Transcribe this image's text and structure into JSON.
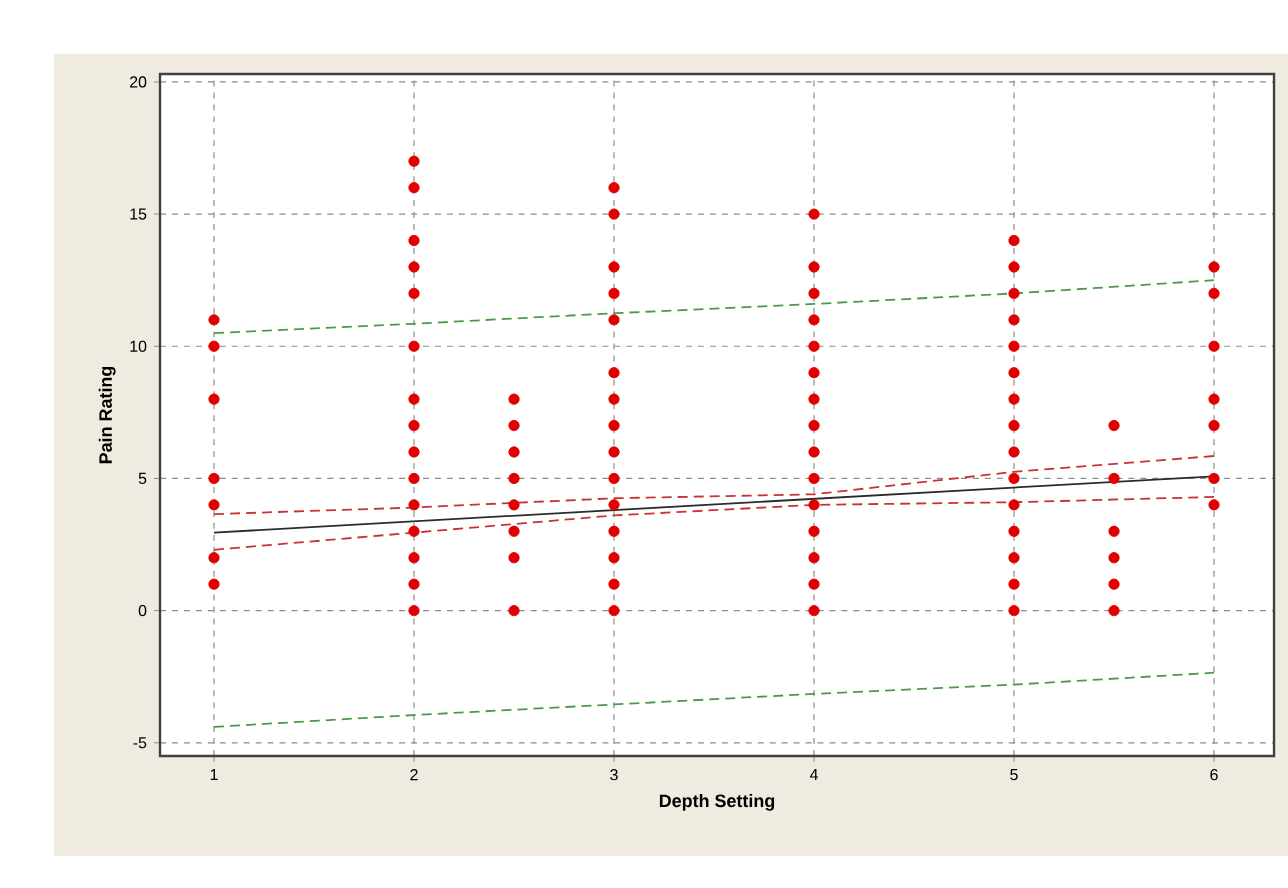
{
  "chart_data": {
    "type": "scatter",
    "xlabel": "Depth Setting",
    "ylabel": "Pain Rating",
    "xlim": [
      0.73,
      6.3
    ],
    "ylim": [
      -5.5,
      20.3
    ],
    "xticks": [
      1,
      2,
      3,
      4,
      5,
      6
    ],
    "yticks": [
      -5,
      0,
      5,
      10,
      15,
      20
    ],
    "grid": true,
    "series": [
      {
        "color": "#e00000",
        "marker": "circle",
        "x": [
          1,
          1,
          1,
          1,
          1,
          1,
          1,
          2,
          2,
          2,
          2,
          2,
          2,
          2,
          2,
          2,
          2,
          2,
          2,
          2,
          2,
          2,
          2.5,
          2.5,
          2.5,
          2.5,
          2.5,
          2.5,
          2.5,
          2.5,
          3,
          3,
          3,
          3,
          3,
          3,
          3,
          3,
          3,
          3,
          3,
          3,
          3,
          3,
          3,
          4,
          4,
          4,
          4,
          4,
          4,
          4,
          4,
          4,
          4,
          4,
          4,
          4,
          4,
          4,
          5,
          5,
          5,
          5,
          5,
          5,
          5,
          5,
          5,
          5,
          5,
          5,
          5,
          5,
          5,
          5.5,
          5.5,
          5.5,
          5.5,
          5.5,
          5.5,
          6,
          6,
          6,
          6,
          6,
          6,
          6
        ],
        "values": [
          11,
          10,
          8,
          5,
          4,
          2,
          1,
          17,
          16,
          14,
          13,
          12,
          10,
          8,
          7,
          6,
          5,
          4,
          3,
          2,
          1,
          0,
          8,
          7,
          6,
          5,
          4,
          3,
          2,
          0,
          16,
          15,
          13,
          12,
          11,
          9,
          8,
          7,
          6,
          5,
          4,
          3,
          2,
          1,
          0,
          15,
          13,
          12,
          11,
          10,
          9,
          8,
          7,
          6,
          5,
          4,
          3,
          2,
          1,
          0,
          14,
          13,
          12,
          11,
          10,
          9,
          8,
          7,
          6,
          5,
          4,
          3,
          2,
          1,
          0,
          7,
          5,
          3,
          2,
          1,
          0,
          13,
          12,
          10,
          8,
          7,
          5,
          4
        ]
      },
      {
        "type": "line",
        "color": "#2b2b2b",
        "line_style": "solid",
        "x": [
          1,
          6
        ],
        "values": [
          2.95,
          5.08
        ]
      },
      {
        "type": "line",
        "color": "#c83232",
        "line_style": "dashed",
        "x": [
          1,
          2,
          3,
          4,
          5,
          6
        ],
        "values": [
          3.65,
          3.9,
          4.25,
          4.4,
          5.25,
          5.85
        ]
      },
      {
        "type": "line",
        "color": "#c83232",
        "line_style": "dashed",
        "x": [
          1,
          2,
          3,
          4,
          5,
          6
        ],
        "values": [
          2.3,
          2.95,
          3.6,
          4.0,
          4.1,
          4.3
        ]
      },
      {
        "type": "line",
        "color": "#4a9a4a",
        "line_style": "dashed",
        "x": [
          1,
          2,
          3,
          4,
          5,
          6
        ],
        "values": [
          10.5,
          10.85,
          11.25,
          11.6,
          12.0,
          12.5
        ]
      },
      {
        "type": "line",
        "color": "#4a9a4a",
        "line_style": "dashed",
        "x": [
          1,
          2,
          3,
          4,
          5,
          6
        ],
        "values": [
          -4.4,
          -3.95,
          -3.55,
          -3.15,
          -2.8,
          -2.35
        ]
      }
    ]
  }
}
